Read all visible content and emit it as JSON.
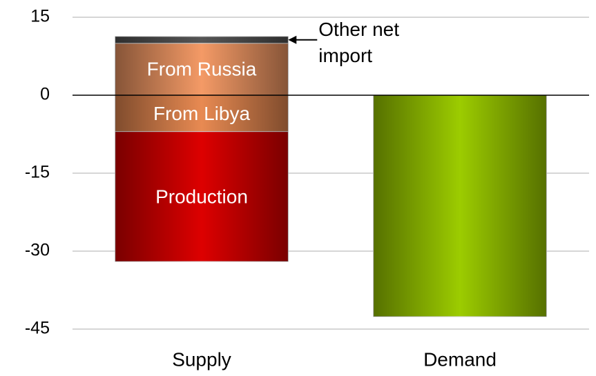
{
  "chart_data": {
    "type": "stacked_bar",
    "categories": [
      "Supply",
      "Demand"
    ],
    "series": [
      {
        "name": "From Libya",
        "color": "#e88a52",
        "values": [
          -7,
          null
        ]
      },
      {
        "name": "Production",
        "color": "#dd0000",
        "values": [
          -25,
          null
        ]
      },
      {
        "name": "From Russia",
        "color": "#f49a66",
        "values": [
          10,
          null
        ]
      },
      {
        "name": "Other net import",
        "color": "#555555",
        "values": [
          1.3,
          null
        ]
      },
      {
        "name": "Demand",
        "color": "#9ccc00",
        "values": [
          null,
          -42.6
        ]
      }
    ],
    "ylim": [
      -45,
      15
    ],
    "yticks": [
      -45,
      -30,
      -15,
      0,
      15
    ],
    "grid": true
  }
}
